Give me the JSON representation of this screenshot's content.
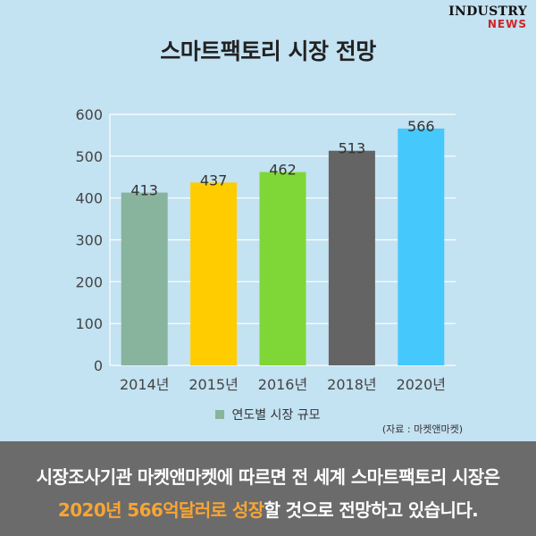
{
  "logo": {
    "top": "INDUSTRY",
    "bottom": "NEWS"
  },
  "title": "스마트팩토리 시장 전망",
  "legend_label": "연도별 시장 규모",
  "source": "(자료 : 마켓앤마켓)",
  "footer": {
    "line1": "시장조사기관 마켓앤마켓에 따르면 전 세계 스마트팩토리 시장은",
    "line2_highlight1": "2020년 566억달러로",
    "line2_highlight2": "성장",
    "line2_rest": "할 것으로 전망하고 있습니다."
  },
  "colors": {
    "background": "#c3e2f2",
    "footer": "#6b6b6b",
    "highlight": "#f7a534",
    "legend": "#88b39c"
  },
  "chart_data": {
    "type": "bar",
    "categories": [
      "2014년",
      "2015년",
      "2016년",
      "2018년",
      "2020년"
    ],
    "values": [
      413,
      437,
      462,
      513,
      566
    ],
    "bar_colors": [
      "#88b39c",
      "#ffcc00",
      "#7fd637",
      "#646464",
      "#45c8fb"
    ],
    "yticks": [
      0,
      100,
      200,
      300,
      400,
      500,
      600
    ],
    "ylim": [
      0,
      600
    ],
    "grid": true,
    "legend": "bottom-center"
  }
}
